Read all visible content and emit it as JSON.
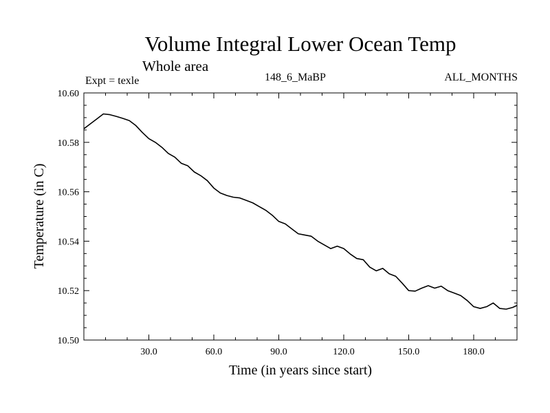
{
  "header": {
    "title": "Volume Integral Lower Ocean Temp",
    "subtitle": "Whole area",
    "experiment": "Expt = texle",
    "run_id": "148_6_MaBP",
    "months": "ALL_MONTHS"
  },
  "chart_data": {
    "type": "line",
    "title": "Volume Integral Lower Ocean Temp",
    "xlabel": "Time (in years since start)",
    "ylabel": "Temperature (in C)",
    "xlim": [
      0,
      200
    ],
    "ylim": [
      10.5,
      10.6
    ],
    "xticks": [
      30,
      60,
      90,
      120,
      150,
      180
    ],
    "xtick_labels": [
      "30.0",
      "60.0",
      "90.0",
      "120.0",
      "150.0",
      "180.0"
    ],
    "yticks": [
      10.5,
      10.52,
      10.54,
      10.56,
      10.58,
      10.6
    ],
    "ytick_labels": [
      "10.50",
      "10.52",
      "10.54",
      "10.56",
      "10.58",
      "10.60"
    ],
    "grid": false,
    "series": [
      {
        "name": "Lower ocean temperature",
        "x": [
          0,
          3,
          6,
          9,
          12,
          15,
          18,
          21,
          24,
          27,
          30,
          33,
          36,
          39,
          42,
          45,
          48,
          51,
          54,
          57,
          60,
          63,
          66,
          69,
          72,
          75,
          78,
          81,
          84,
          87,
          90,
          93,
          96,
          99,
          102,
          105,
          108,
          111,
          114,
          117,
          120,
          123,
          126,
          129,
          132,
          135,
          138,
          141,
          144,
          147,
          150,
          153,
          156,
          159,
          162,
          165,
          168,
          171,
          174,
          177,
          180,
          183,
          186,
          189,
          192,
          195,
          198,
          200
        ],
        "values": [
          10.5855,
          10.5875,
          10.5895,
          10.5915,
          10.5912,
          10.5905,
          10.5897,
          10.5888,
          10.5868,
          10.584,
          10.5815,
          10.58,
          10.578,
          10.5755,
          10.574,
          10.5715,
          10.5705,
          10.568,
          10.5665,
          10.5645,
          10.5615,
          10.5595,
          10.5585,
          10.5578,
          10.5575,
          10.5565,
          10.5555,
          10.554,
          10.5525,
          10.5505,
          10.548,
          10.547,
          10.545,
          10.543,
          10.5425,
          10.542,
          10.54,
          10.5385,
          10.537,
          10.538,
          10.537,
          10.5348,
          10.533,
          10.5325,
          10.5295,
          10.528,
          10.529,
          10.5268,
          10.5258,
          10.523,
          10.52,
          10.5198,
          10.521,
          10.522,
          10.521,
          10.5218,
          10.52,
          10.519,
          10.518,
          10.516,
          10.5135,
          10.5128,
          10.5135,
          10.515,
          10.5128,
          10.5125,
          10.5132,
          10.514
        ]
      }
    ]
  }
}
